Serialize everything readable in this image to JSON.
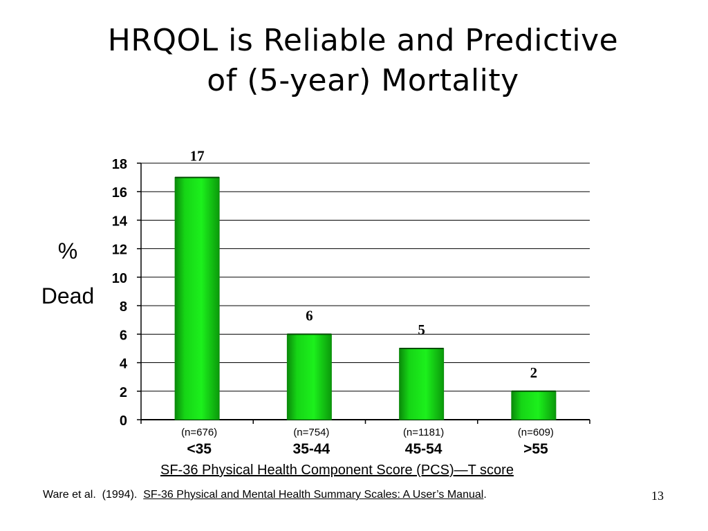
{
  "slide": {
    "title_line1": "HRQOL is Reliable and Predictive",
    "title_line2": "of (5-year) Mortality",
    "slide_number": "13"
  },
  "citation": {
    "authors": "Ware et al.",
    "year": "(1994).",
    "book_title": "SF-36 Physical and Mental Health Summary Scales: A User’s Manual",
    "end": "."
  },
  "colors": {
    "bar": "#16d516",
    "bar_dark": "#0a8a0a",
    "grid": "#000000"
  },
  "chart_data": {
    "type": "bar",
    "title": "",
    "ylabel_line1": "%",
    "ylabel_line2": "Dead",
    "xlabel": "SF-36 Physical Health Component Score (PCS)—T score",
    "categories": [
      "<35",
      "35-44",
      "45-54",
      ">55"
    ],
    "sample_sizes": [
      "(n=676)",
      "(n=754)",
      "(n=1181)",
      "(n=609)"
    ],
    "values": [
      17,
      6,
      5,
      2
    ],
    "data_labels": [
      "17",
      "6",
      "5",
      "2"
    ],
    "ylim": [
      0,
      18
    ],
    "yticks": [
      0,
      2,
      4,
      6,
      8,
      10,
      12,
      14,
      16,
      18
    ],
    "grid": true,
    "legend": "none"
  }
}
